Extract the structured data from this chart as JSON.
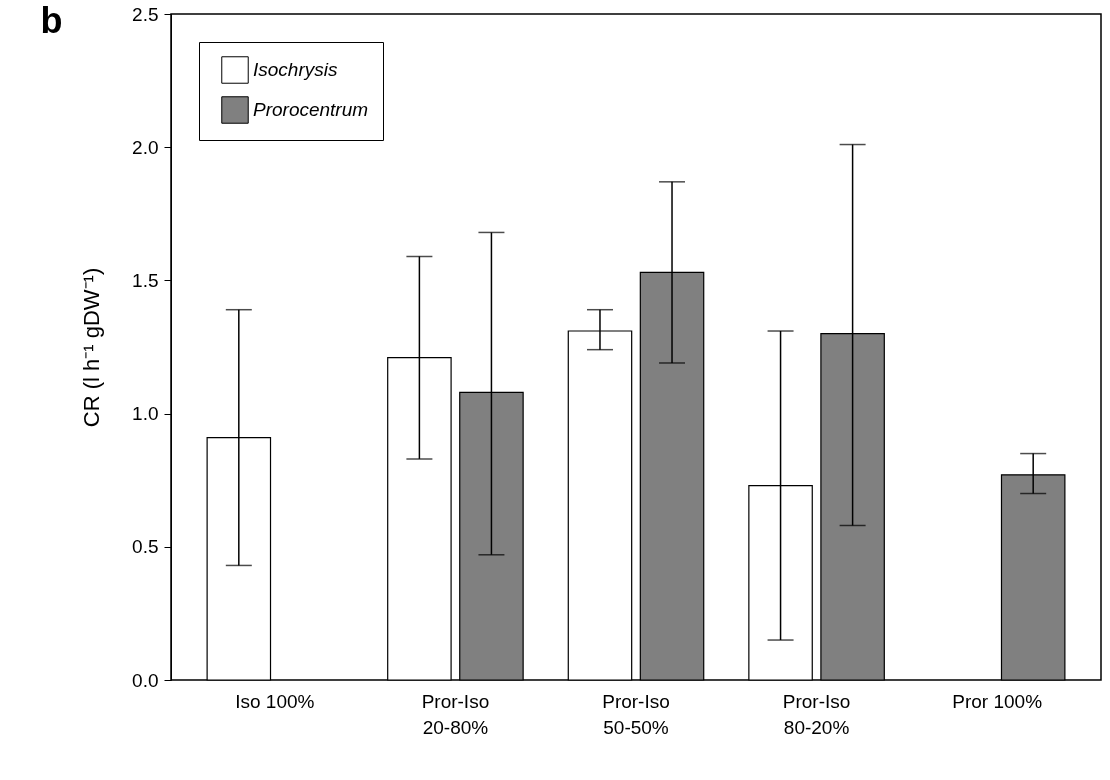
{
  "chart_data": {
    "type": "bar",
    "ylabel": "CR (l h⁻¹ gDW⁻¹)",
    "annotations": [
      "b"
    ],
    "categories": [
      "Iso 100%",
      "Pror-Iso\n20-80%",
      "Pror-Iso\n50-50%",
      "Pror-Iso\n80-20%",
      "Pror 100%"
    ],
    "series": [
      {
        "name": "Isochrysis",
        "color": "#ffffff",
        "values": [
          0.91,
          1.21,
          1.31,
          0.73,
          null
        ],
        "errors": [
          [
            0.43,
            1.39
          ],
          [
            0.83,
            1.59
          ],
          [
            1.24,
            1.39
          ],
          [
            0.15,
            1.31
          ],
          null
        ]
      },
      {
        "name": "Prorocentrum",
        "color": "#808080",
        "values": [
          null,
          1.08,
          1.53,
          1.3,
          0.77
        ],
        "errors": [
          null,
          [
            0.47,
            1.68
          ],
          [
            1.19,
            1.87
          ],
          [
            0.58,
            2.01
          ],
          [
            0.7,
            0.85
          ]
        ]
      }
    ],
    "ylim": [
      0,
      2.5
    ],
    "yticks": [
      {
        "value": 0,
        "label": "0.0"
      },
      0.5,
      {
        "value": 1,
        "label": "1.0"
      },
      1.5,
      {
        "value": 2,
        "label": "2.0"
      },
      2.5
    ],
    "grid": false,
    "legend": "top left"
  }
}
